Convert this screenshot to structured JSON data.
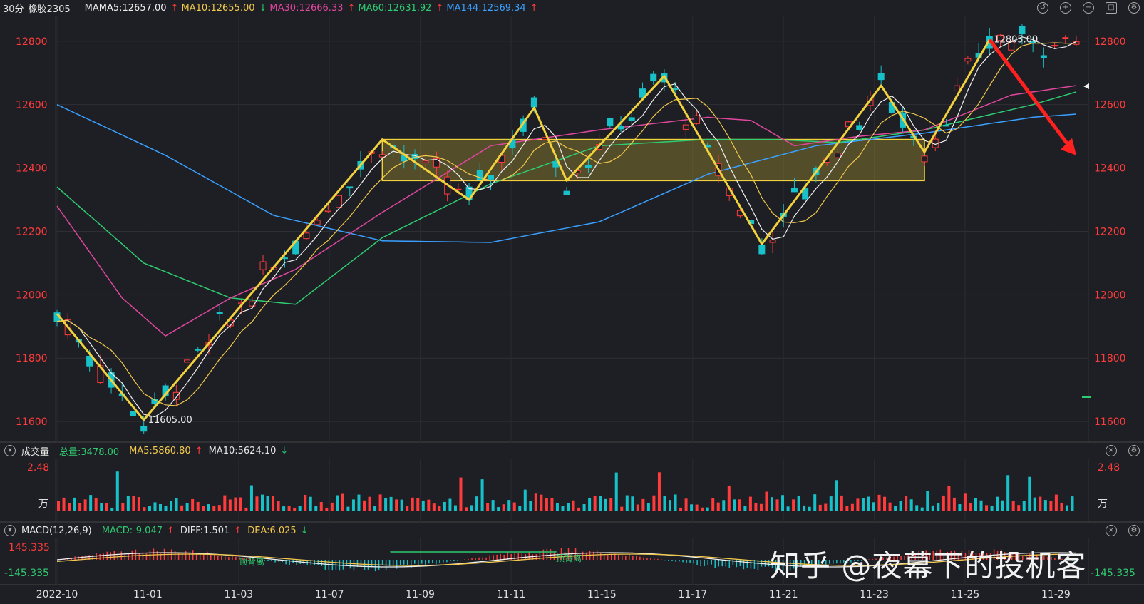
{
  "header": {
    "period": "30分",
    "symbol": "橡胶2305",
    "ma_label": "MA",
    "ma": [
      {
        "text": "MA5:12657.00",
        "arrow": "↑",
        "color": "#f0f0f0",
        "acolor": "#ff3b3b"
      },
      {
        "text": "MA10:12655.00",
        "arrow": "↓",
        "color": "#f2c94c",
        "acolor": "#27c46b"
      },
      {
        "text": "MA30:12666.33",
        "arrow": "↑",
        "color": "#e0479e",
        "acolor": "#ff3b3b"
      },
      {
        "text": "MA60:12631.92",
        "arrow": "↑",
        "color": "#2ecc71",
        "acolor": "#ff3b3b"
      },
      {
        "text": "MA144:12569.34",
        "arrow": "↑",
        "color": "#3aa0ff",
        "acolor": "#ff3b3b"
      }
    ]
  },
  "volume_header": {
    "title": "成交量",
    "total": "总量:3478.00",
    "ma5": "MA5:5860.80",
    "ma5_arrow": "↑",
    "ma10": "MA10:5624.10",
    "ma10_arrow": "↓"
  },
  "macd_header": {
    "title": "MACD(12,26,9)",
    "macd": "MACD:-9.047",
    "macd_arrow": "↑",
    "diff": "DIFF:1.501",
    "diff_arrow": "↑",
    "dea": "DEA:6.025",
    "dea_arrow": "↓"
  },
  "watermark": "知乎 @夜幕下的投机客",
  "colors": {
    "up": "#ff3b3b",
    "down": "#17c1c9",
    "zigzag": "#f2d23c",
    "box": "#b8a236",
    "ma5": "#f0f0f0",
    "ma10": "#f2c94c",
    "ma30": "#e0479e",
    "ma60": "#2ecc71",
    "ma144": "#3aa0ff"
  },
  "chart_data": {
    "type": "candlestick",
    "price_axis": {
      "ticks": [
        12800,
        12600,
        12400,
        12200,
        12000,
        11800,
        11600
      ],
      "ylim": [
        11580,
        12840
      ]
    },
    "date_ticks": [
      "2022-10",
      "11-01",
      "11-03",
      "11-07",
      "11-09",
      "11-11",
      "11-15",
      "11-17",
      "11-21",
      "11-23",
      "11-25",
      "11-29"
    ],
    "annotations": {
      "high": "12805.00",
      "low": "11605.00"
    },
    "zigzag": [
      [
        0,
        11940
      ],
      [
        8,
        11605
      ],
      [
        30,
        12490
      ],
      [
        38,
        12300
      ],
      [
        44,
        12590
      ],
      [
        47,
        12360
      ],
      [
        56,
        12690
      ],
      [
        65,
        12160
      ],
      [
        76,
        12660
      ],
      [
        80,
        12450
      ],
      [
        86,
        12805
      ]
    ],
    "range_box": {
      "x_from": 30,
      "x_to": 80,
      "price_low": 12360,
      "price_high": 12490
    },
    "trend_arrow": {
      "from": [
        86,
        12805
      ],
      "to": [
        94,
        12440
      ]
    },
    "ma144_points": [
      [
        0,
        12600
      ],
      [
        10,
        12440
      ],
      [
        20,
        12250
      ],
      [
        30,
        12170
      ],
      [
        40,
        12165
      ],
      [
        50,
        12230
      ],
      [
        60,
        12380
      ],
      [
        70,
        12470
      ],
      [
        80,
        12510
      ],
      [
        90,
        12560
      ],
      [
        94,
        12570
      ]
    ],
    "ma60_points": [
      [
        0,
        12340
      ],
      [
        8,
        12100
      ],
      [
        16,
        11990
      ],
      [
        22,
        11970
      ],
      [
        30,
        12180
      ],
      [
        40,
        12350
      ],
      [
        50,
        12470
      ],
      [
        60,
        12490
      ],
      [
        66,
        12490
      ],
      [
        72,
        12480
      ],
      [
        80,
        12520
      ],
      [
        90,
        12600
      ],
      [
        94,
        12640
      ]
    ],
    "ma30_points": [
      [
        0,
        12280
      ],
      [
        6,
        11990
      ],
      [
        10,
        11870
      ],
      [
        16,
        11990
      ],
      [
        22,
        12080
      ],
      [
        30,
        12260
      ],
      [
        40,
        12470
      ],
      [
        50,
        12520
      ],
      [
        60,
        12560
      ],
      [
        64,
        12550
      ],
      [
        68,
        12470
      ],
      [
        74,
        12500
      ],
      [
        80,
        12520
      ],
      [
        88,
        12630
      ],
      [
        94,
        12660
      ]
    ],
    "volume": {
      "label_top": "2.48",
      "label_unit": "万"
    },
    "macd": {
      "label_top": "145.335",
      "label_bottom": "-145.335",
      "notes": [
        "顶背离",
        "顶背离"
      ]
    }
  }
}
